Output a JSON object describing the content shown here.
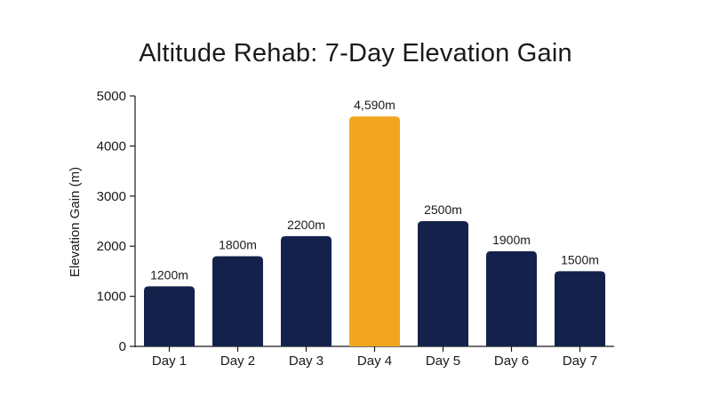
{
  "chart_data": {
    "type": "bar",
    "title": "Altitude Rehab: 7-Day Elevation Gain",
    "xlabel": "",
    "ylabel": "Elevation Gain (m)",
    "ylim": [
      0,
      5000
    ],
    "yticks": [
      "0",
      "1000",
      "2000",
      "3000",
      "4000",
      "5000"
    ],
    "grid": false,
    "categories": [
      "Day 1",
      "Day 2",
      "Day 3",
      "Day 4",
      "Day 5",
      "Day 6",
      "Day 7"
    ],
    "values": [
      1200,
      1800,
      2200,
      4590,
      2500,
      1900,
      1500
    ],
    "data_labels": [
      "1200m",
      "1800m",
      "2200m",
      "4,590m",
      "2500m",
      "1900m",
      "1500m"
    ],
    "highlight_index": 3,
    "colors": {
      "bar": "#14214b",
      "highlight": "#f2a61f",
      "axis": "#1a1a1a"
    }
  }
}
